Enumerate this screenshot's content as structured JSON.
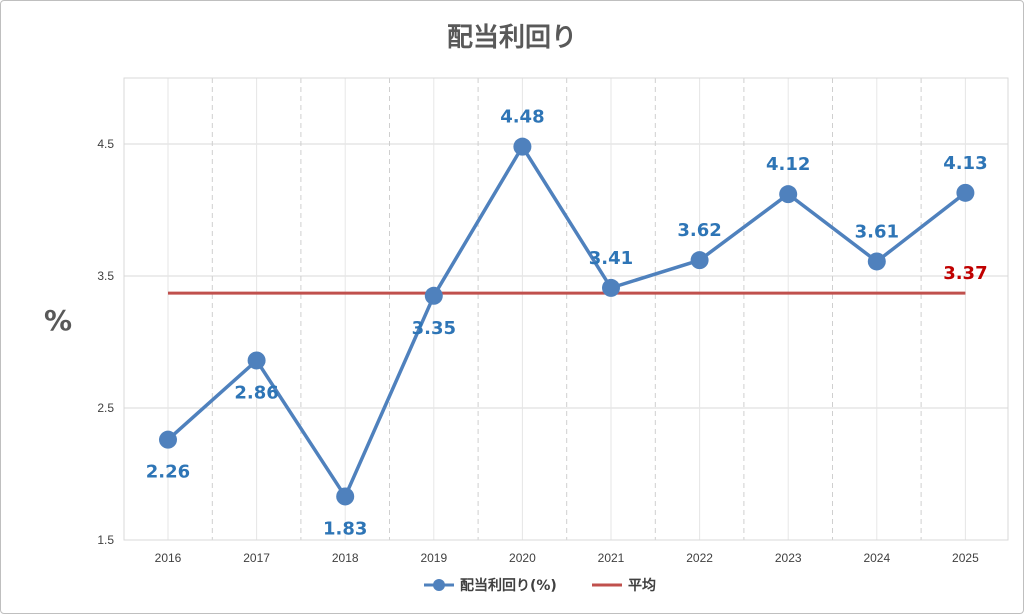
{
  "chart_data": {
    "type": "line",
    "title": "配当利回り",
    "ylabel": "%",
    "xlabel": "",
    "categories": [
      "2016",
      "2017",
      "2018",
      "2019",
      "2020",
      "2021",
      "2022",
      "2023",
      "2024",
      "2025"
    ],
    "y_ticks": [
      "1.5",
      "2.5",
      "3.5",
      "4.5"
    ],
    "ylim": [
      1.5,
      5.0
    ],
    "grid": "horizontal solid, vertical dashed",
    "legend_position": "bottom",
    "series": [
      {
        "name": "配当利回り(%)",
        "values": [
          2.26,
          2.86,
          1.83,
          3.35,
          4.48,
          3.41,
          3.62,
          4.12,
          3.61,
          4.13
        ],
        "labels": [
          "2.26",
          "2.86",
          "1.83",
          "3.35",
          "4.48",
          "3.41",
          "3.62",
          "4.12",
          "3.61",
          "4.13"
        ],
        "color": "#4F81BD",
        "marker": "circle"
      },
      {
        "name": "平均",
        "values": [
          3.37,
          3.37,
          3.37,
          3.37,
          3.37,
          3.37,
          3.37,
          3.37,
          3.37,
          3.37
        ],
        "labels": [
          "3.37"
        ],
        "color": "#C0504D"
      }
    ]
  }
}
